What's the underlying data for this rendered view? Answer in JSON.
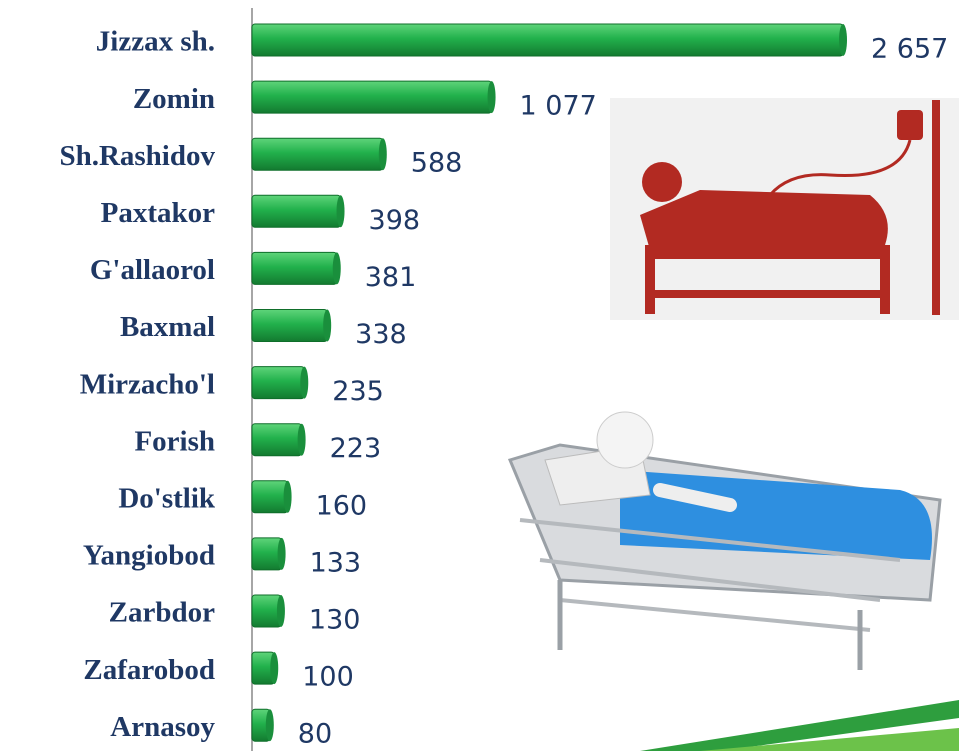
{
  "chart_data": {
    "type": "bar",
    "orientation": "horizontal",
    "color": "#22b14c",
    "categories": [
      "Jizzax sh.",
      "Zomin",
      "Sh.Rashidov",
      "Paxtakor",
      "G'allaorol",
      "Baxmal",
      "Mirzacho'l",
      "Forish",
      "Do'stlik",
      "Yangiobod",
      "Zarbdor",
      "Zafarobod",
      "Arnasoy"
    ],
    "values": [
      2657,
      1077,
      588,
      398,
      381,
      338,
      235,
      223,
      160,
      133,
      130,
      100,
      80
    ],
    "value_labels": [
      "2 657",
      "1 077",
      "588",
      "398",
      "381",
      "338",
      "235",
      "223",
      "160",
      "133",
      "130",
      "100",
      "80"
    ]
  }
}
